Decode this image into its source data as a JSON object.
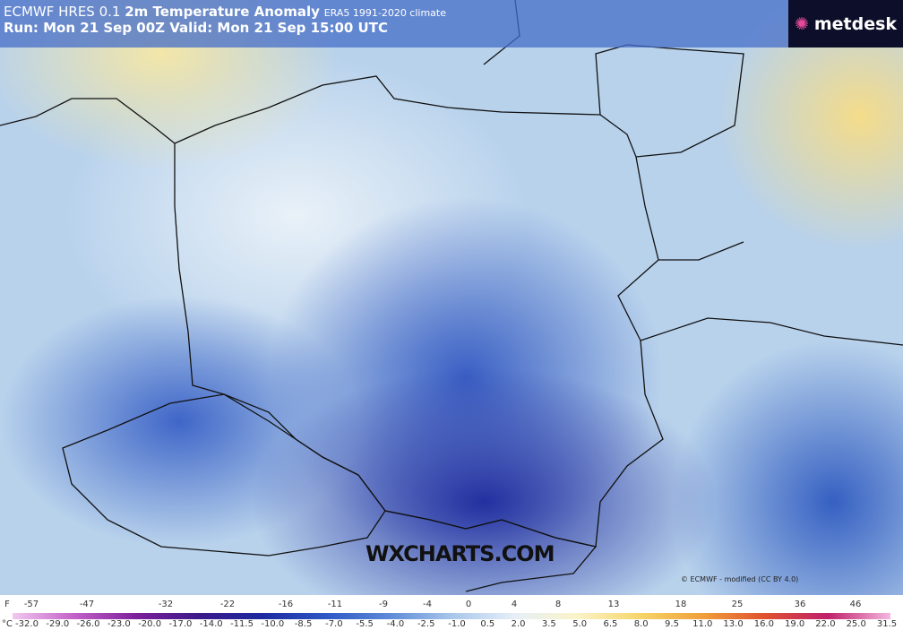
{
  "header": {
    "title_prefix": "ECMWF HRES 0.1",
    "title": "2m Temperature Anomaly",
    "climate": "ERA5 1991-2020 climate",
    "run": "Run: Mon 21 Sep 00Z Valid: Mon 21 Sep 15:00 UTC",
    "logo": "metdesk"
  },
  "watermark": "WXCHARTS.COM",
  "copyright": "© ECMWF - modified (CC BY 4.0)",
  "legend": {
    "f_unit": "F",
    "f_labels": [
      "-57",
      "-47",
      "-32",
      "-22",
      "-16",
      "-11",
      "-9",
      "-4",
      "0",
      "4",
      "8",
      "13",
      "18",
      "25",
      "36",
      "46"
    ],
    "c_unit": "°C",
    "c_labels": [
      "-32.0",
      "-29.0",
      "-26.0",
      "-23.0",
      "-20.0",
      "-17.0",
      "-14.0",
      "-11.5",
      "-10.0",
      "-8.5",
      "-7.0",
      "-5.5",
      "-4.0",
      "-2.5",
      "-1.0",
      "0.5",
      "2.0",
      "3.5",
      "5.0",
      "6.5",
      "8.0",
      "9.5",
      "11.0",
      "13.0",
      "16.0",
      "19.0",
      "22.0",
      "25.0",
      "31.5"
    ]
  }
}
